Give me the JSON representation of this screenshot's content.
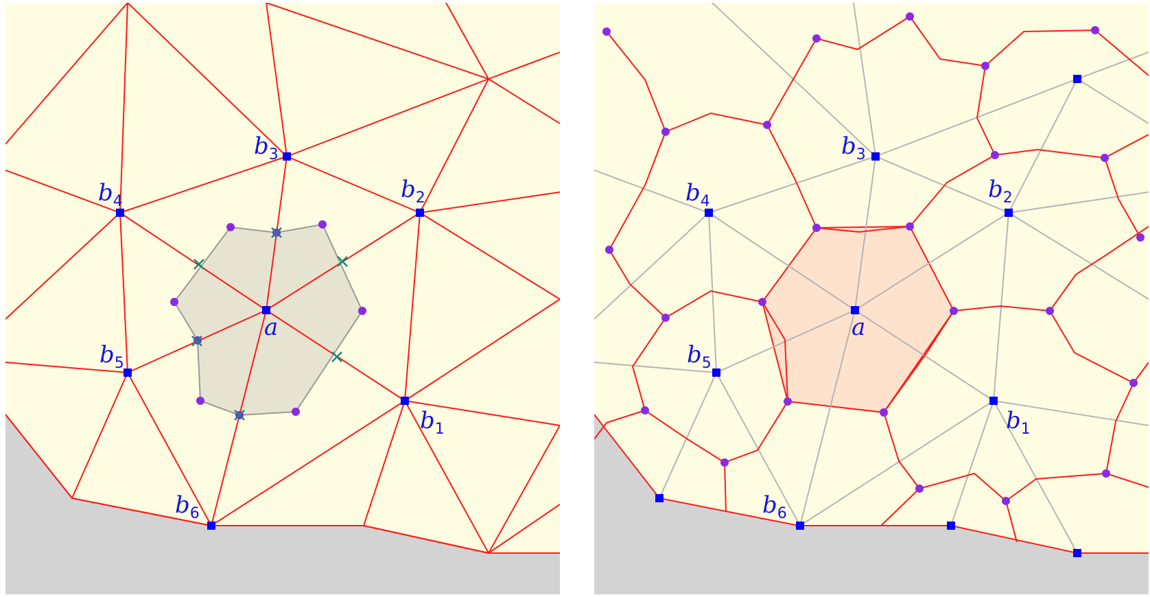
{
  "colors": {
    "domain_fill": "#fffde1",
    "outside_fill": "#d3d3d3",
    "edge": "#ff1a1a",
    "dual_grid": "#b5b5b5",
    "vertex": "#0000ff",
    "midpoint_dot": "#8a2be2",
    "cross_mark": "#138a7a",
    "cell_gray_fill": "#e6e4d0",
    "cell_gray_stroke": "#9a9a9a",
    "cell_orange_fill": "#ffe2cc",
    "label": "#1414e6"
  },
  "left_panel": {
    "center_label": {
      "base": "a"
    },
    "neighbor_labels": [
      {
        "base": "b",
        "sub": "1"
      },
      {
        "base": "b",
        "sub": "2"
      },
      {
        "base": "b",
        "sub": "3"
      },
      {
        "base": "b",
        "sub": "4"
      },
      {
        "base": "b",
        "sub": "5"
      },
      {
        "base": "b",
        "sub": "6"
      }
    ]
  },
  "right_panel": {
    "center_label": {
      "base": "a"
    },
    "neighbor_labels": [
      {
        "base": "b",
        "sub": "1"
      },
      {
        "base": "b",
        "sub": "2"
      },
      {
        "base": "b",
        "sub": "3"
      },
      {
        "base": "b",
        "sub": "4"
      },
      {
        "base": "b",
        "sub": "5"
      },
      {
        "base": "b",
        "sub": "6"
      }
    ]
  }
}
